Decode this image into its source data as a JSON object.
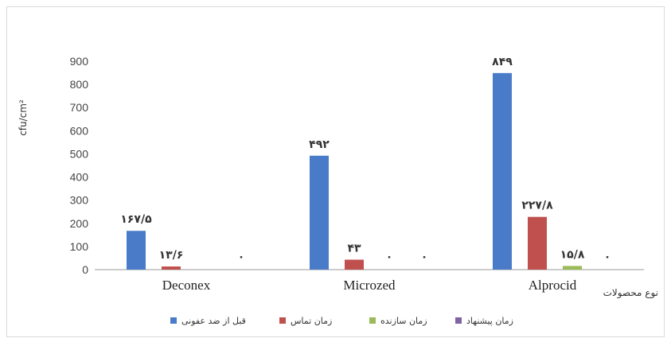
{
  "chart_data": {
    "type": "bar",
    "categories": [
      "Deconex",
      "Microzed",
      "Alprocid"
    ],
    "series": [
      {
        "name": "قبل از ضد عفونی",
        "color": "#4a7bc8",
        "values": [
          167.5,
          492,
          849
        ]
      },
      {
        "name": "زمان تماس",
        "color": "#c0504d",
        "values": [
          13.6,
          43,
          227.8
        ]
      },
      {
        "name": "زمان سازنده",
        "color": "#9bbb59",
        "values": [
          0,
          0,
          15.8
        ]
      },
      {
        "name": "زمان پیشنهاد",
        "color": "#7f63a3",
        "values": [
          0,
          0,
          0
        ]
      }
    ],
    "data_labels": [
      [
        "۱۶۷/۵",
        "۴۹۲",
        "۸۴۹"
      ],
      [
        "۱۳/۶",
        "۴۳",
        "۲۲۷/۸"
      ],
      [
        "",
        "۰",
        "۱۵/۸"
      ],
      [
        "۰",
        "۰",
        "۰"
      ]
    ],
    "ylim": [
      0,
      900
    ],
    "yticks": [
      "0",
      "100",
      "200",
      "300",
      "400",
      "500",
      "600",
      "700",
      "800",
      "900"
    ],
    "ylabel": "cfu/cm²",
    "xlabel": "نوع محصولات",
    "grid": false,
    "legend_position": "bottom"
  }
}
